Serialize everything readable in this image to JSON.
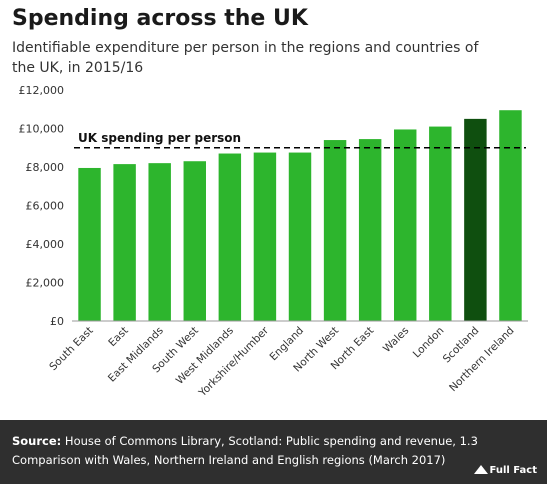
{
  "title": "Spending across the UK",
  "subtitle": "Identifiable expenditure per person in the regions and countries of the UK, in 2015/16",
  "footer": {
    "source_label": "Source:",
    "source_text": "House of Commons Library, Scotland: Public spending and revenue, 1.3 Comparison with Wales, Northern Ireland and English regions (March 2017)",
    "logo_text": "Full Fact"
  },
  "colors": {
    "bar": "#2db52d",
    "highlight": "#0f4f0f",
    "reference": "#000000",
    "footer_bg": "#2f2f2f"
  },
  "chart_data": {
    "type": "bar",
    "categories": [
      "South East",
      "East",
      "East Midlands",
      "South West",
      "West Midlands",
      "Yorkshire/Humber",
      "England",
      "North West",
      "North East",
      "Wales",
      "London",
      "Scotland",
      "Northern Ireland"
    ],
    "values": [
      7950,
      8150,
      8200,
      8300,
      8700,
      8750,
      8750,
      9400,
      9450,
      9950,
      10100,
      10500,
      10950
    ],
    "highlight_category": "Scotland",
    "reference_line": {
      "value": 9000,
      "label": "UK spending per person"
    },
    "ylim": [
      0,
      12000
    ],
    "yticks": [
      0,
      2000,
      4000,
      6000,
      8000,
      10000,
      12000
    ],
    "ytick_labels": [
      "£0",
      "£2,000",
      "£4,000",
      "£6,000",
      "£8,000",
      "£10,000",
      "£12,000"
    ],
    "grid": false
  }
}
